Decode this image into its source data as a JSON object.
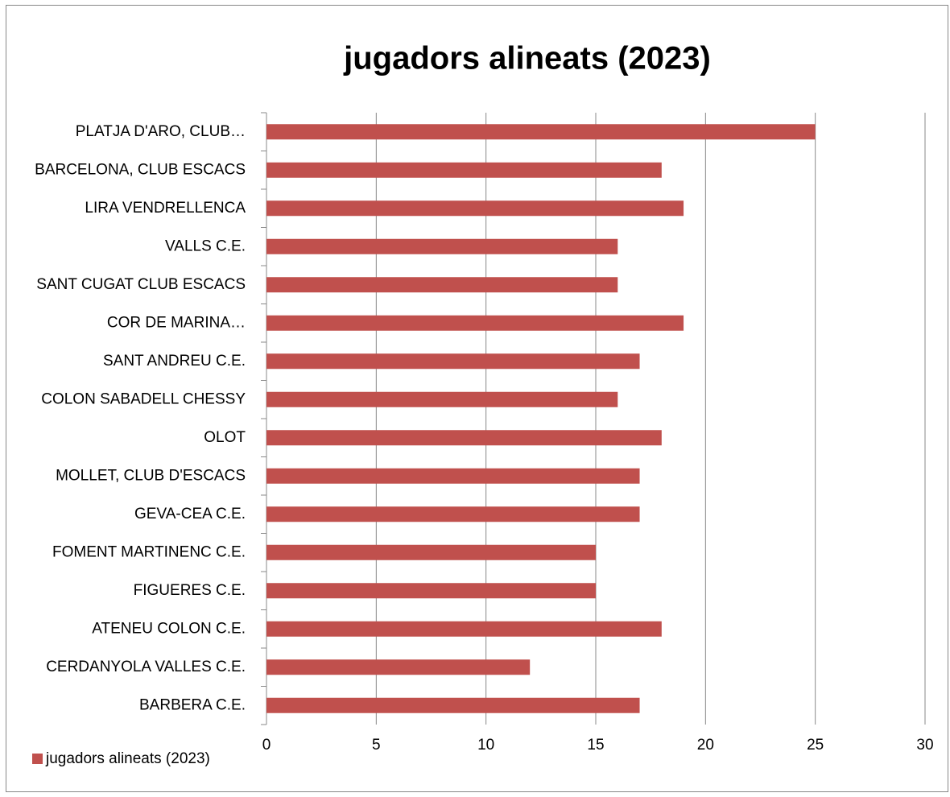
{
  "chart_data": {
    "type": "bar",
    "orientation": "horizontal",
    "title": "jugadors alineats (2023)",
    "categories": [
      "PLATJA D'ARO, CLUB…",
      "BARCELONA, CLUB ESCACS",
      "LIRA VENDRELLENCA",
      "VALLS C.E.",
      "SANT CUGAT CLUB ESCACS",
      "COR DE MARINA…",
      "SANT ANDREU C.E.",
      "COLON SABADELL CHESSY",
      "OLOT",
      "MOLLET, CLUB D'ESCACS",
      "GEVA-CEA C.E.",
      "FOMENT MARTINENC C.E.",
      "FIGUERES C.E.",
      "ATENEU COLON C.E.",
      "CERDANYOLA VALLES C.E.",
      "BARBERA C.E."
    ],
    "series": [
      {
        "name": "jugadors alineats (2023)",
        "color": "#c0504d",
        "values": [
          25,
          18,
          19,
          16,
          16,
          19,
          17,
          16,
          18,
          17,
          17,
          15,
          15,
          18,
          12,
          17
        ]
      }
    ],
    "xlim": [
      0,
      30
    ],
    "xticks": [
      0,
      5,
      10,
      15,
      20,
      25,
      30
    ],
    "grid": true,
    "legend": "bottom-left"
  }
}
